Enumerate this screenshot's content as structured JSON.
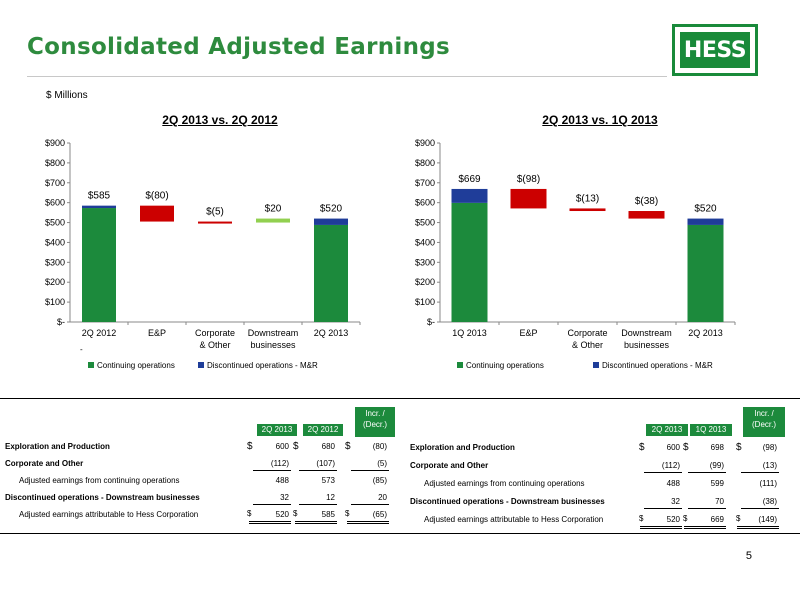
{
  "header": {
    "title": "Consolidated Adjusted Earnings",
    "units": "$ Millions",
    "logo_text": "HESS"
  },
  "charts": {
    "left_title": "2Q 2013 vs. 2Q 2012",
    "right_title": "2Q 2013 vs. 1Q 2013"
  },
  "chart_data": [
    {
      "type": "bar",
      "title": "2Q 2013 vs. 2Q 2012",
      "categories": [
        "2Q 2012",
        "E&P",
        "Corporate & Other",
        "Downstream businesses",
        "2Q 2013"
      ],
      "category_lines": [
        [
          "2Q 2012"
        ],
        [
          "E&P"
        ],
        [
          "Corporate",
          "& Other"
        ],
        [
          "Downstream",
          "businesses"
        ],
        [
          "2Q 2013"
        ]
      ],
      "data_labels": [
        "$585",
        "$(80)",
        "$(5)",
        "$20",
        "$520"
      ],
      "bars": [
        {
          "kind": "total",
          "cont": 573,
          "disc": 12
        },
        {
          "kind": "delta",
          "from": 585,
          "to": 505,
          "color": "#cc0000"
        },
        {
          "kind": "delta",
          "from": 505,
          "to": 500,
          "color": "#cc0000"
        },
        {
          "kind": "delta",
          "from": 500,
          "to": 520,
          "color": "#92d050"
        },
        {
          "kind": "total",
          "cont": 488,
          "disc": 32
        }
      ],
      "ylim": [
        0,
        900
      ],
      "yticks": [
        "$-",
        "$100",
        "$200",
        "$300",
        "$400",
        "$500",
        "$600",
        "$700",
        "$800",
        "$900"
      ],
      "legend": [
        {
          "label": "Continuing operations",
          "color": "#1c8a3c"
        },
        {
          "label": "Discontinued operations - M&R",
          "color": "#1f3d99"
        }
      ],
      "legend_position": "bottom",
      "grid": false,
      "footnote": "-"
    },
    {
      "type": "bar",
      "title": "2Q 2013 vs. 1Q 2013",
      "categories": [
        "1Q 2013",
        "E&P",
        "Corporate & Other",
        "Downstream businesses",
        "2Q 2013"
      ],
      "category_lines": [
        [
          "1Q 2013"
        ],
        [
          "E&P"
        ],
        [
          "Corporate",
          "& Other"
        ],
        [
          "Downstream",
          "businesses"
        ],
        [
          "2Q 2013"
        ]
      ],
      "data_labels": [
        "$669",
        "$(98)",
        "$(13)",
        "$(38)",
        "$520"
      ],
      "bars": [
        {
          "kind": "total",
          "cont": 599,
          "disc": 70
        },
        {
          "kind": "delta",
          "from": 669,
          "to": 571,
          "color": "#cc0000"
        },
        {
          "kind": "delta",
          "from": 571,
          "to": 558,
          "color": "#cc0000"
        },
        {
          "kind": "delta",
          "from": 558,
          "to": 520,
          "color": "#cc0000"
        },
        {
          "kind": "total",
          "cont": 488,
          "disc": 32
        }
      ],
      "ylim": [
        0,
        900
      ],
      "yticks": [
        "$-",
        "$100",
        "$200",
        "$300",
        "$400",
        "$500",
        "$600",
        "$700",
        "$800",
        "$900"
      ],
      "legend": [
        {
          "label": "Continuing operations",
          "color": "#1c8a3c"
        },
        {
          "label": "Discontinued operations - M&R",
          "color": "#1f3d99"
        }
      ],
      "legend_position": "bottom",
      "grid": false
    }
  ],
  "tables": {
    "left": {
      "headers": [
        "2Q 2013",
        "2Q 2012",
        "Incr. /",
        "(Decr.)"
      ],
      "rows": [
        {
          "label": "Exploration and Production",
          "bold": true,
          "values": [
            "600",
            "680",
            "(80)"
          ],
          "dollar": true
        },
        {
          "label": "Corporate and Other",
          "bold": true,
          "values": [
            "(112)",
            "(107)",
            "(5)"
          ],
          "dollar": false
        },
        {
          "label": "Adjusted earnings from continuing operations",
          "bold": false,
          "values": [
            "488",
            "573",
            "(85)"
          ],
          "dollar": false
        },
        {
          "label": "Discontinued operations - Downstream businesses",
          "bold": true,
          "values": [
            "32",
            "12",
            "20"
          ],
          "dollar": false
        },
        {
          "label": "Adjusted earnings attributable to Hess Corporation",
          "bold": false,
          "values": [
            "520",
            "585",
            "(65)"
          ],
          "dollar": true
        }
      ]
    },
    "right": {
      "headers": [
        "2Q 2013",
        "1Q 2013",
        "Incr. /",
        "(Decr.)"
      ],
      "rows": [
        {
          "label": "Exploration and Production",
          "bold": true,
          "values": [
            "600",
            "698",
            "(98)"
          ],
          "dollar": true
        },
        {
          "label": "Corporate and Other",
          "bold": true,
          "values": [
            "(112)",
            "(99)",
            "(13)"
          ],
          "dollar": false
        },
        {
          "label": "Adjusted earnings from continuing operations",
          "bold": false,
          "values": [
            "488",
            "599",
            "(111)"
          ],
          "dollar": false
        },
        {
          "label": "Discontinued operations - Downstream businesses",
          "bold": true,
          "values": [
            "32",
            "70",
            "(38)"
          ],
          "dollar": false
        },
        {
          "label": "Adjusted earnings attributable to Hess Corporation",
          "bold": false,
          "values": [
            "520",
            "669",
            "(149)"
          ],
          "dollar": true
        }
      ]
    }
  },
  "page": {
    "number": "5"
  }
}
